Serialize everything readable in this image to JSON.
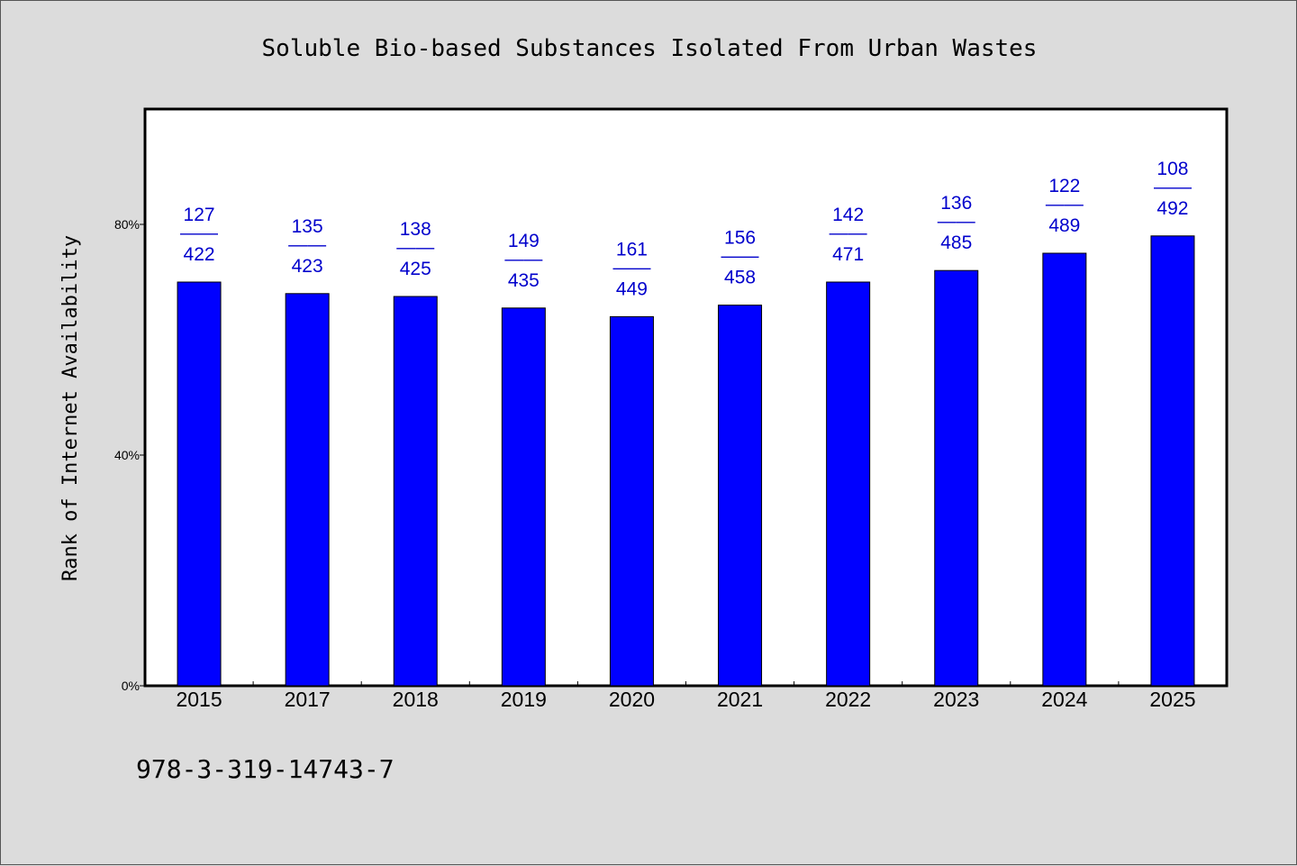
{
  "chart_data": {
    "type": "bar",
    "title": "Soluble Bio-based Substances Isolated From Urban Wastes",
    "xlabel": "",
    "ylabel": "Rank of Internet Availability",
    "ylim": [
      0,
      100
    ],
    "yticks": [
      0,
      40,
      80
    ],
    "ytick_labels": [
      "0%",
      "40%",
      "80%"
    ],
    "categories": [
      "2015",
      "2017",
      "2018",
      "2019",
      "2020",
      "2021",
      "2022",
      "2023",
      "2024",
      "2025"
    ],
    "values": [
      70,
      68,
      67.5,
      65.5,
      64,
      66,
      70,
      72,
      75,
      78
    ],
    "data_labels": [
      {
        "top": "127",
        "sep": "——",
        "bottom": "422"
      },
      {
        "top": "135",
        "sep": "——",
        "bottom": "423"
      },
      {
        "top": "138",
        "sep": "——",
        "bottom": "425"
      },
      {
        "top": "149",
        "sep": "——",
        "bottom": "435"
      },
      {
        "top": "161",
        "sep": "——",
        "bottom": "449"
      },
      {
        "top": "156",
        "sep": "——",
        "bottom": "458"
      },
      {
        "top": "142",
        "sep": "——",
        "bottom": "471"
      },
      {
        "top": "136",
        "sep": "——",
        "bottom": "485"
      },
      {
        "top": "122",
        "sep": "——",
        "bottom": "489"
      },
      {
        "top": "108",
        "sep": "——",
        "bottom": "492"
      }
    ],
    "bar_color": "#0000ff",
    "label_color": "#0000cc",
    "grid": false,
    "legend": "none"
  },
  "footer": {
    "isbn": "978-3-319-14743-7"
  }
}
